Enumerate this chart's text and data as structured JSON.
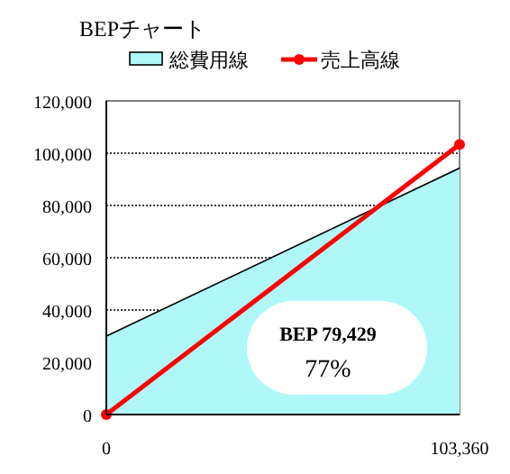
{
  "chart_data": {
    "type": "line",
    "title": "BEPチャート",
    "x": [
      0,
      103360
    ],
    "series": [
      {
        "name": "総費用線",
        "type": "area",
        "color": "#b0f8f8",
        "values": [
          30000,
          94300
        ]
      },
      {
        "name": "売上高線",
        "color": "#ff0000",
        "values": [
          0,
          103360
        ],
        "marker": "circle"
      }
    ],
    "xlim": [
      0,
      103360
    ],
    "xticks": [
      {
        "value": 0,
        "label": "0"
      },
      {
        "value": 103360,
        "label": "103,360"
      }
    ],
    "ylim": [
      0,
      120000
    ],
    "yticks": [
      0,
      {
        "value": 20000,
        "label": "20,000"
      },
      {
        "value": 40000,
        "label": "40,000"
      },
      {
        "value": 60000,
        "label": "60,000"
      },
      {
        "value": 80000,
        "label": "80,000"
      },
      {
        "value": 100000,
        "label": "100,000"
      },
      {
        "value": 120000,
        "label": "120,000"
      }
    ],
    "grid": "y",
    "legend": "top",
    "annotations": [
      "BEP 79,429",
      "77%"
    ]
  }
}
